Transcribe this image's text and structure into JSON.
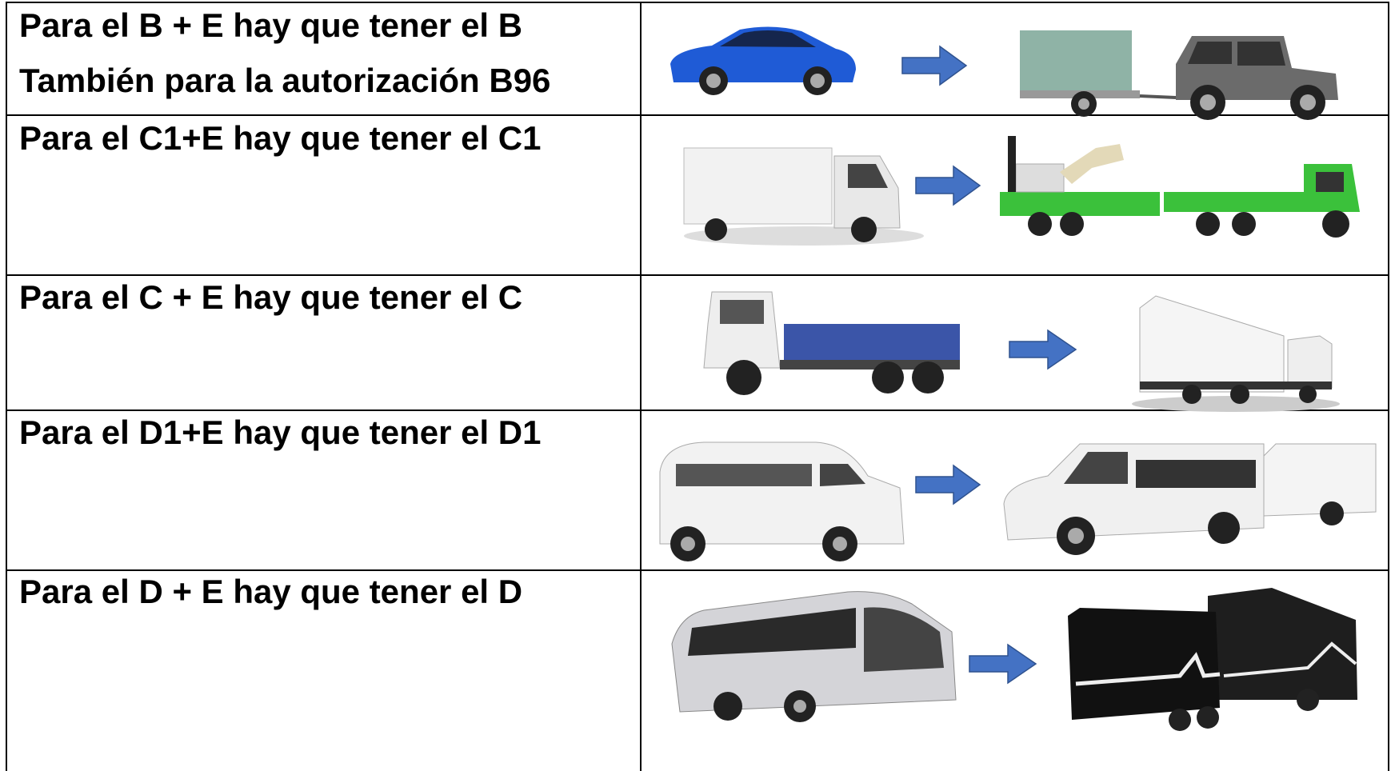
{
  "table": {
    "rows": [
      {
        "lines": [
          "Para el B + E hay que tener el B",
          "También para la autorización B96"
        ]
      },
      {
        "lines": [
          "Para el C1+E hay que tener el C1"
        ]
      },
      {
        "lines": [
          "Para el C + E hay que tener el C"
        ]
      },
      {
        "lines": [
          "Para el D1+E hay que tener el D1"
        ]
      },
      {
        "lines": [
          "Para el D + E hay que tener el D"
        ]
      }
    ]
  }
}
